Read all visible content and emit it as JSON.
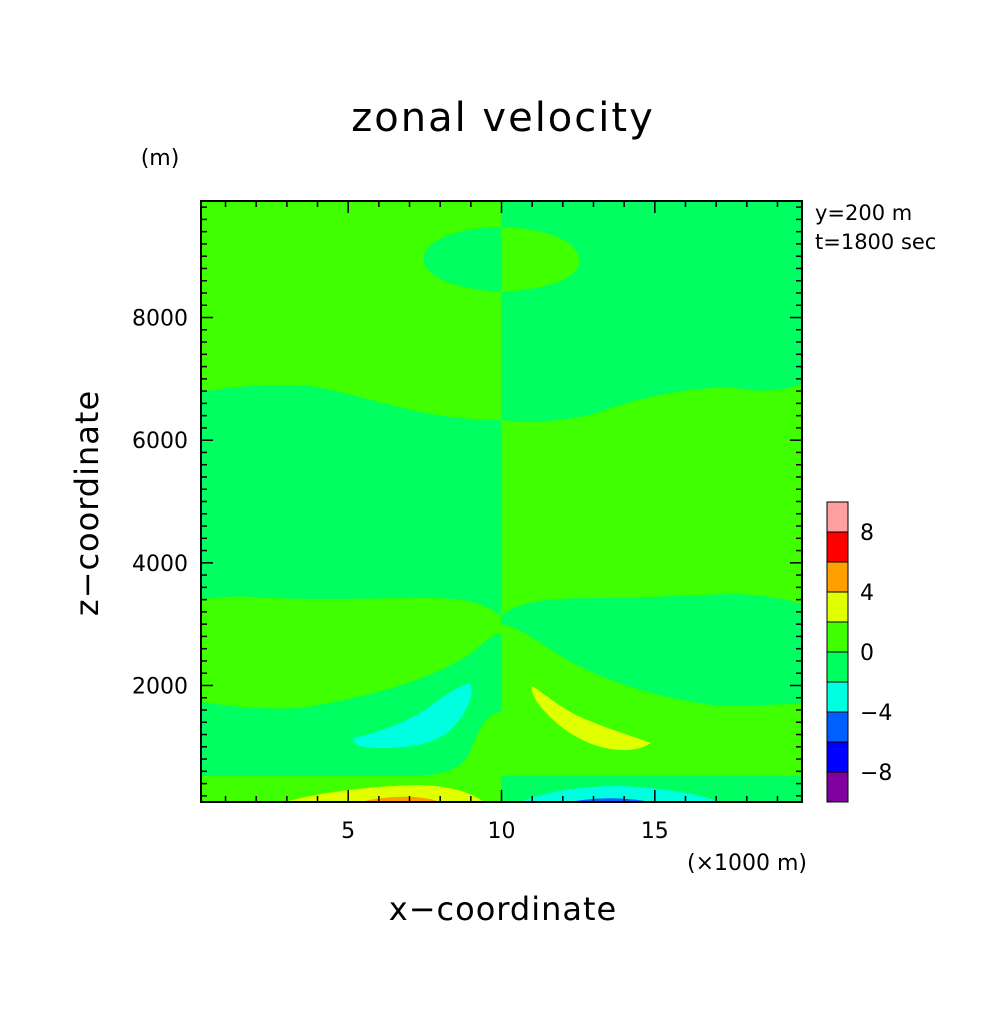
{
  "chart_data": {
    "type": "heatmap",
    "title": "zonal velocity",
    "xlabel": "x−coordinate",
    "ylabel": "z−coordinate",
    "y_unit": "(m)",
    "x_unit": "(×1000 m)",
    "annotations": [
      "y=200 m",
      "t=1800 sec"
    ],
    "xlim": [
      0.2,
      19.8
    ],
    "ylim": [
      100,
      9900
    ],
    "x_ticks": [
      5,
      10,
      15
    ],
    "x_tick_labels": [
      "5",
      "10",
      "15"
    ],
    "y_ticks": [
      2000,
      4000,
      6000,
      8000
    ],
    "y_tick_labels": [
      "2000",
      "4000",
      "6000",
      "8000"
    ],
    "colorbar": {
      "levels": [
        -10,
        -8,
        -6,
        -4,
        -2,
        0,
        2,
        4,
        6,
        8,
        10
      ],
      "colors": [
        "#7f009f",
        "#0000ff",
        "#0060ff",
        "#00ffe0",
        "#00ff60",
        "#40ff00",
        "#e0ff00",
        "#ffa000",
        "#ff0000",
        "#ff9f9f"
      ],
      "tick_values": [
        -8,
        -4,
        0,
        4,
        8
      ],
      "tick_labels": [
        "−8",
        "−4",
        "0",
        "4",
        "8"
      ]
    },
    "regions": [
      {
        "name": "band-upper-left",
        "color": "#40ff00",
        "fill": "upper-left"
      },
      {
        "name": "band-upper-right",
        "color": "#00ff60",
        "fill": "upper-right"
      }
    ]
  }
}
